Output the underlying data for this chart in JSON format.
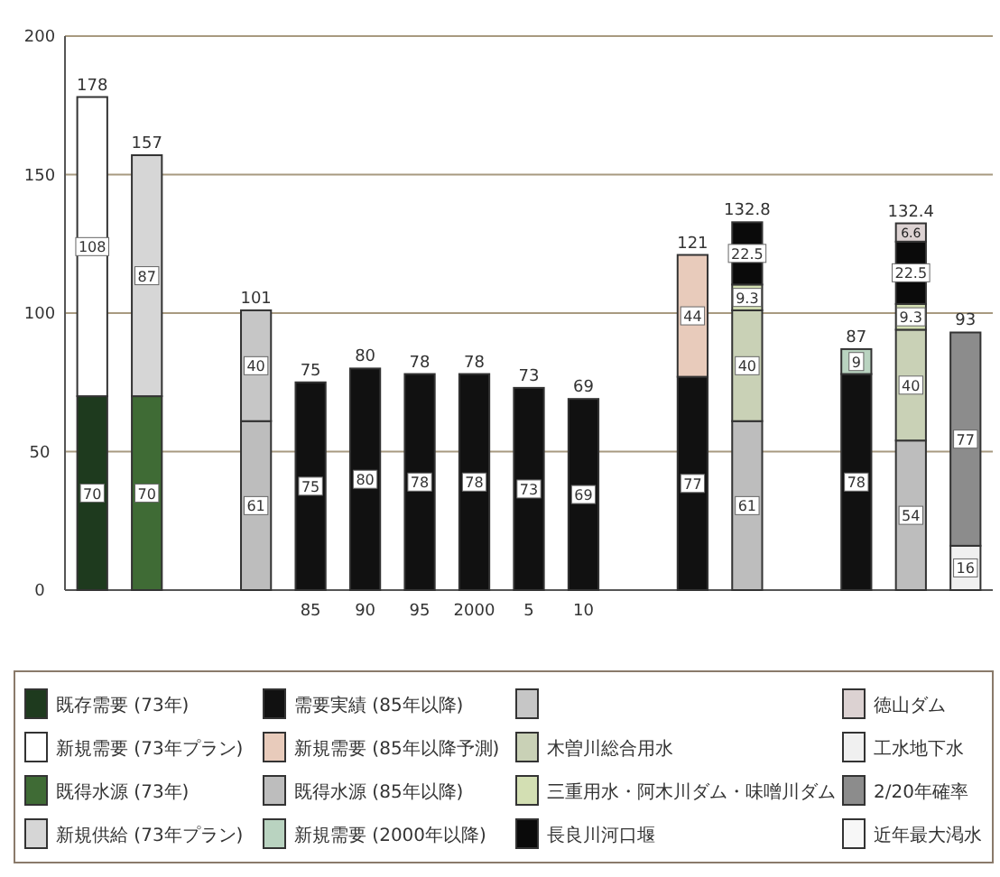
{
  "chart_data": {
    "type": "bar",
    "stacked": true,
    "categories": [
      null,
      null,
      null,
      null,
      "85",
      "90",
      "95",
      "2000",
      "5",
      "10",
      null,
      null,
      null,
      null,
      null,
      null,
      null
    ],
    "series": [
      {
        "name": "既存需要 (73年)",
        "color": "#1e3a1e",
        "values": [
          70,
          null,
          null,
          null,
          null,
          null,
          null,
          null,
          null,
          null,
          null,
          null,
          null,
          null,
          null,
          null,
          null
        ]
      },
      {
        "name": "新規需要 (73年プラン)",
        "color": "#ffffff",
        "values": [
          108,
          null,
          null,
          null,
          null,
          null,
          null,
          null,
          null,
          null,
          null,
          null,
          null,
          null,
          null,
          null,
          null
        ]
      },
      {
        "name": "既得水源 (73年)",
        "color": "#3f6b35",
        "values": [
          null,
          70,
          null,
          null,
          null,
          null,
          null,
          null,
          null,
          null,
          null,
          null,
          null,
          null,
          null,
          null,
          null
        ]
      },
      {
        "name": "新規供給 (73年プラン)",
        "color": "#d6d6d6",
        "values": [
          null,
          87,
          null,
          null,
          null,
          null,
          null,
          null,
          null,
          null,
          null,
          null,
          null,
          null,
          null,
          null,
          null
        ]
      },
      {
        "name": "需要実績 (85年以降)",
        "color": "#111111",
        "values": [
          null,
          null,
          null,
          null,
          75,
          80,
          78,
          78,
          73,
          69,
          null,
          77,
          null,
          null,
          78,
          null,
          null
        ]
      },
      {
        "name": "新規需要 (85年以降予測)",
        "color": "#e8cbbb",
        "values": [
          null,
          null,
          null,
          null,
          null,
          null,
          null,
          null,
          null,
          null,
          null,
          44,
          null,
          null,
          null,
          null,
          null
        ]
      },
      {
        "name": "既得水源 (85年以降)",
        "color": "#bdbdbd",
        "values": [
          null,
          null,
          null,
          61,
          null,
          null,
          null,
          null,
          null,
          null,
          null,
          null,
          61,
          null,
          null,
          54,
          null
        ]
      },
      {
        "name": "新規需要 (2000年以降)",
        "color": "#b9d3c0",
        "values": [
          null,
          null,
          null,
          null,
          null,
          null,
          null,
          null,
          null,
          null,
          null,
          null,
          null,
          null,
          9,
          null,
          null
        ]
      },
      {
        "color": "#c6c6c6",
        "values": [
          null,
          null,
          null,
          40,
          null,
          null,
          null,
          null,
          null,
          null,
          null,
          null,
          null,
          null,
          null,
          null,
          null
        ]
      },
      {
        "name": "木曽川総合用水",
        "color": "#c9d1b6",
        "values": [
          null,
          null,
          null,
          null,
          null,
          null,
          null,
          null,
          null,
          null,
          null,
          null,
          40,
          null,
          null,
          40,
          null
        ]
      },
      {
        "name": "三重用水・阿木川ダム・味噌川ダム",
        "color": "#d3dfb3",
        "values": [
          null,
          null,
          null,
          null,
          null,
          null,
          null,
          null,
          null,
          null,
          null,
          null,
          9.3,
          null,
          null,
          9.3,
          null
        ]
      },
      {
        "name": "長良川河口堰",
        "color": "#0a0a0a",
        "values": [
          null,
          null,
          null,
          null,
          null,
          null,
          null,
          null,
          null,
          null,
          null,
          null,
          22.5,
          null,
          null,
          22.5,
          null
        ]
      },
      {
        "name": "徳山ダム",
        "color": "#dcd2d2",
        "values": [
          null,
          null,
          null,
          null,
          null,
          null,
          null,
          null,
          null,
          null,
          null,
          null,
          null,
          null,
          null,
          6.6,
          null
        ]
      },
      {
        "name": "工水地下水",
        "color": "#f0f0f0",
        "values": [
          null,
          null,
          null,
          null,
          null,
          null,
          null,
          null,
          null,
          null,
          null,
          null,
          null,
          null,
          null,
          null,
          16
        ]
      },
      {
        "name": "2/20年確率",
        "color": "#8c8c8c",
        "values": [
          null,
          null,
          null,
          null,
          null,
          null,
          null,
          null,
          null,
          null,
          null,
          null,
          null,
          null,
          null,
          null,
          77
        ]
      },
      {
        "name": "近年最大渇水",
        "color": "#f7f7f7",
        "values": [
          null,
          null,
          null,
          null,
          null,
          null,
          null,
          null,
          null,
          null,
          null,
          null,
          null,
          null,
          null,
          null,
          null
        ]
      }
    ],
    "totals": [
      "178",
      "157",
      null,
      "101",
      "75",
      "80",
      "78",
      "78",
      "73",
      "69",
      null,
      "121",
      "132.8",
      null,
      "87",
      "132.4",
      "93"
    ],
    "data_labels": true,
    "ylim": [
      0,
      200
    ],
    "yticks": [
      0,
      50,
      100,
      150,
      200
    ],
    "grid": "y",
    "legend": "bottom"
  }
}
